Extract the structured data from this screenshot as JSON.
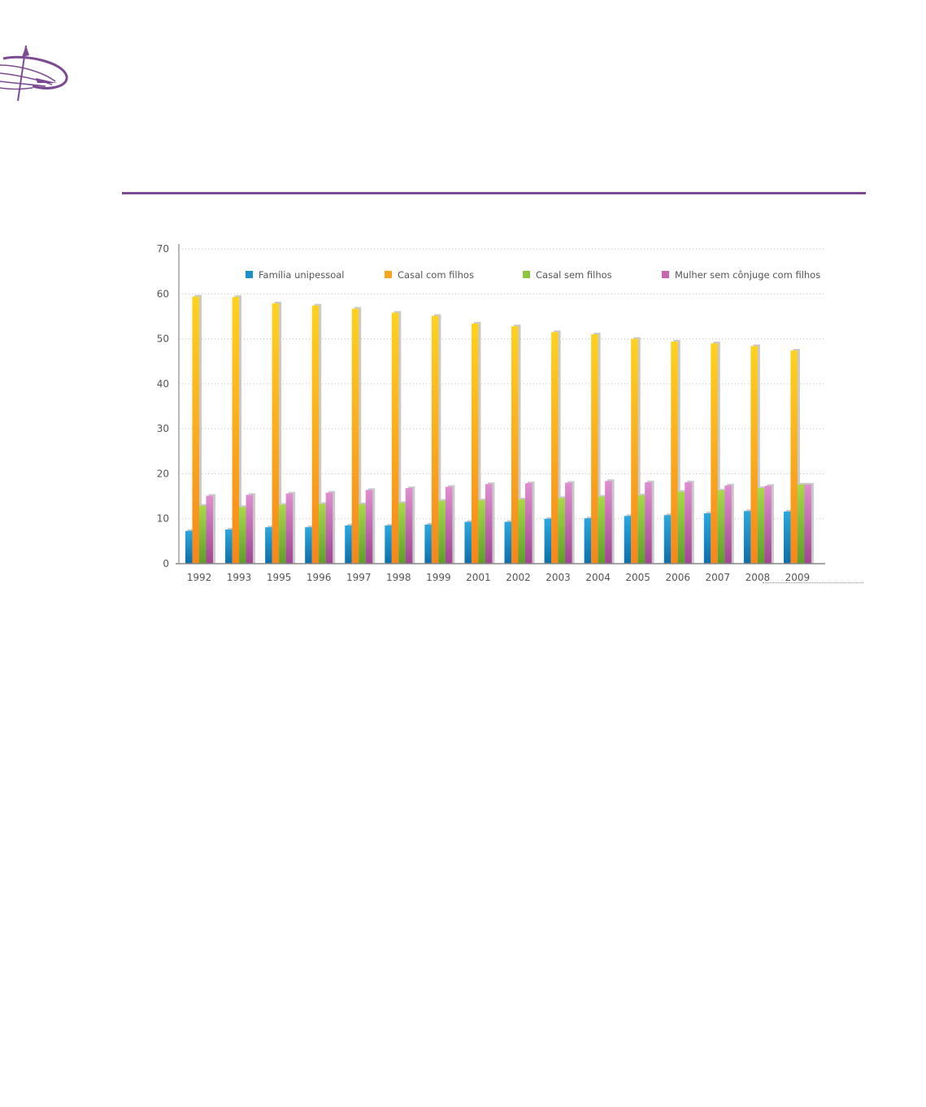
{
  "logo": {
    "icon": "compass-logo-icon",
    "color": "#7b4a93"
  },
  "colors": {
    "rule": "#7b4a93",
    "familia_unipessoal": "#1b8fc8",
    "casal_com_filhos": "#f7a51c",
    "casal_sem_filhos": "#8cc63f",
    "mulher_sem_conjuge": "#c667b0"
  },
  "chart_data": {
    "type": "bar",
    "categories": [
      "1992",
      "1993",
      "1995",
      "1996",
      "1997",
      "1998",
      "1999",
      "2001",
      "2002",
      "2003",
      "2004",
      "2005",
      "2006",
      "2007",
      "2008",
      "2009"
    ],
    "series": [
      {
        "name": "Família unipessoal",
        "values": [
          7.3,
          7.6,
          8.1,
          8.1,
          8.5,
          8.5,
          8.7,
          9.3,
          9.3,
          10.0,
          10.1,
          10.6,
          10.8,
          11.2,
          11.7,
          11.6
        ]
      },
      {
        "name": "Casal com filhos",
        "values": [
          59.4,
          59.3,
          57.9,
          57.4,
          56.7,
          55.8,
          55.1,
          53.4,
          52.8,
          51.5,
          51.0,
          50.0,
          49.4,
          49.0,
          48.4,
          47.4
        ]
      },
      {
        "name": "Casal sem filhos",
        "values": [
          12.9,
          12.6,
          13.1,
          13.3,
          13.2,
          13.5,
          14.0,
          14.1,
          14.3,
          14.6,
          14.9,
          15.2,
          16.0,
          16.3,
          16.8,
          17.6
        ]
      },
      {
        "name": "Mulher sem cônjuge com filhos",
        "values": [
          15.1,
          15.3,
          15.6,
          15.8,
          16.4,
          16.8,
          17.1,
          17.7,
          17.9,
          18.0,
          18.4,
          18.1,
          18.1,
          17.4,
          17.3,
          17.6
        ]
      }
    ],
    "yticks": [
      "0",
      "10",
      "20",
      "30",
      "40",
      "50",
      "60",
      "70"
    ],
    "ylim": [
      0,
      70
    ],
    "grid": true,
    "legend": "top"
  }
}
